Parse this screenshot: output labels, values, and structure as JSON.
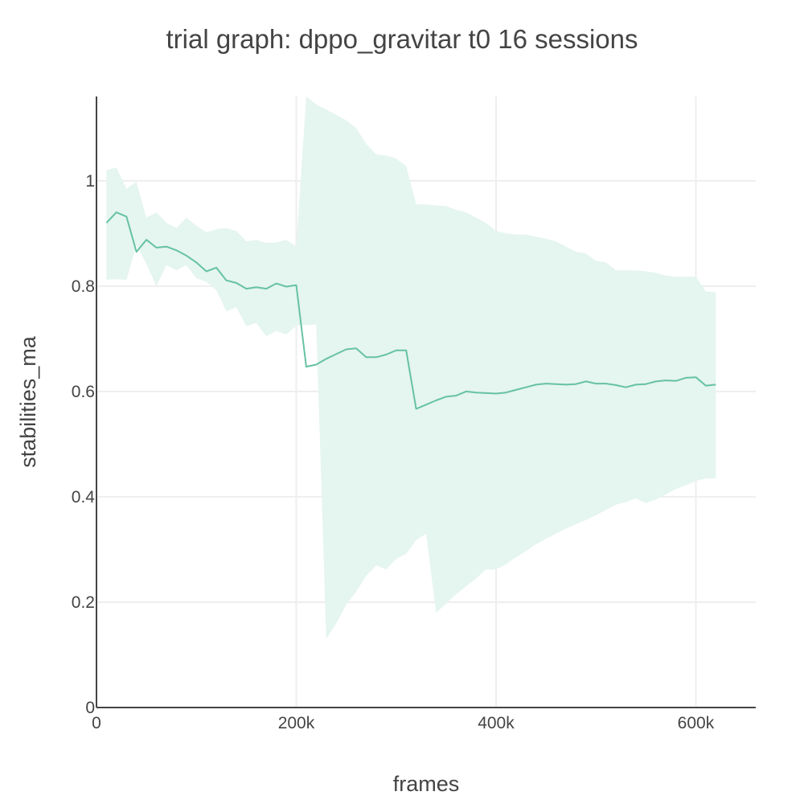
{
  "chart_data": {
    "type": "line",
    "title": "trial graph: dppo_gravitar t0 16 sessions",
    "xlabel": "frames",
    "ylabel": "stabilities_ma",
    "xlim": [
      0,
      660000
    ],
    "ylim": [
      0,
      1.16
    ],
    "x_ticks": [
      {
        "value": 0,
        "label": "0"
      },
      {
        "value": 200000,
        "label": "200k"
      },
      {
        "value": 400000,
        "label": "400k"
      },
      {
        "value": 600000,
        "label": "600k"
      }
    ],
    "y_ticks": [
      {
        "value": 0,
        "label": "0"
      },
      {
        "value": 0.2,
        "label": "0.2"
      },
      {
        "value": 0.4,
        "label": "0.4"
      },
      {
        "value": 0.6,
        "label": "0.6"
      },
      {
        "value": 0.8,
        "label": "0.8"
      },
      {
        "value": 1,
        "label": "1"
      }
    ],
    "grid": true,
    "colors": {
      "line": "#66c2a5",
      "band": "#e5f5ef"
    },
    "series": [
      {
        "name": "mean",
        "x": [
          10000,
          20000,
          30000,
          40000,
          50000,
          60000,
          70000,
          80000,
          90000,
          100000,
          110000,
          120000,
          130000,
          140000,
          150000,
          160000,
          170000,
          180000,
          190000,
          200000,
          210000,
          220000,
          230000,
          240000,
          250000,
          260000,
          270000,
          280000,
          290000,
          300000,
          310000,
          320000,
          330000,
          340000,
          350000,
          360000,
          370000,
          380000,
          390000,
          400000,
          410000,
          420000,
          430000,
          440000,
          450000,
          460000,
          470000,
          480000,
          490000,
          500000,
          510000,
          520000,
          530000,
          540000,
          550000,
          560000,
          570000,
          580000,
          590000,
          600000,
          610000,
          620000
        ],
        "y": [
          0.92,
          0.94,
          0.932,
          0.865,
          0.888,
          0.873,
          0.875,
          0.868,
          0.858,
          0.845,
          0.828,
          0.835,
          0.811,
          0.806,
          0.795,
          0.798,
          0.795,
          0.805,
          0.799,
          0.802,
          0.647,
          0.651,
          0.662,
          0.671,
          0.68,
          0.682,
          0.665,
          0.665,
          0.67,
          0.678,
          0.678,
          0.567,
          0.575,
          0.583,
          0.59,
          0.592,
          0.6,
          0.598,
          0.597,
          0.596,
          0.598,
          0.603,
          0.608,
          0.613,
          0.615,
          0.614,
          0.613,
          0.614,
          0.619,
          0.615,
          0.615,
          0.612,
          0.608,
          0.613,
          0.614,
          0.619,
          0.621,
          0.62,
          0.626,
          0.627,
          0.611,
          0.613
        ],
        "upper": [
          1.02,
          1.025,
          0.985,
          0.998,
          0.93,
          0.94,
          0.92,
          0.91,
          0.93,
          0.915,
          0.902,
          0.908,
          0.91,
          0.905,
          0.885,
          0.888,
          0.882,
          0.883,
          0.888,
          0.875,
          1.16,
          1.145,
          1.135,
          1.125,
          1.115,
          1.1,
          1.07,
          1.05,
          1.048,
          1.042,
          1.028,
          0.955,
          0.955,
          0.953,
          0.952,
          0.945,
          0.94,
          0.93,
          0.92,
          0.905,
          0.9,
          0.898,
          0.898,
          0.894,
          0.89,
          0.885,
          0.875,
          0.865,
          0.862,
          0.848,
          0.845,
          0.83,
          0.83,
          0.83,
          0.828,
          0.825,
          0.82,
          0.818,
          0.818,
          0.818,
          0.79,
          0.788
        ],
        "lower": [
          0.812,
          0.813,
          0.812,
          0.878,
          0.842,
          0.8,
          0.84,
          0.83,
          0.84,
          0.815,
          0.808,
          0.792,
          0.752,
          0.76,
          0.724,
          0.73,
          0.705,
          0.715,
          0.708,
          0.725,
          0.726,
          0.727,
          0.13,
          0.16,
          0.195,
          0.22,
          0.25,
          0.27,
          0.262,
          0.282,
          0.292,
          0.318,
          0.33,
          0.18,
          0.197,
          0.215,
          0.23,
          0.245,
          0.262,
          0.262,
          0.272,
          0.285,
          0.297,
          0.31,
          0.32,
          0.33,
          0.34,
          0.348,
          0.356,
          0.365,
          0.375,
          0.385,
          0.39,
          0.397,
          0.388,
          0.395,
          0.405,
          0.415,
          0.422,
          0.43,
          0.435,
          0.435
        ]
      }
    ]
  }
}
